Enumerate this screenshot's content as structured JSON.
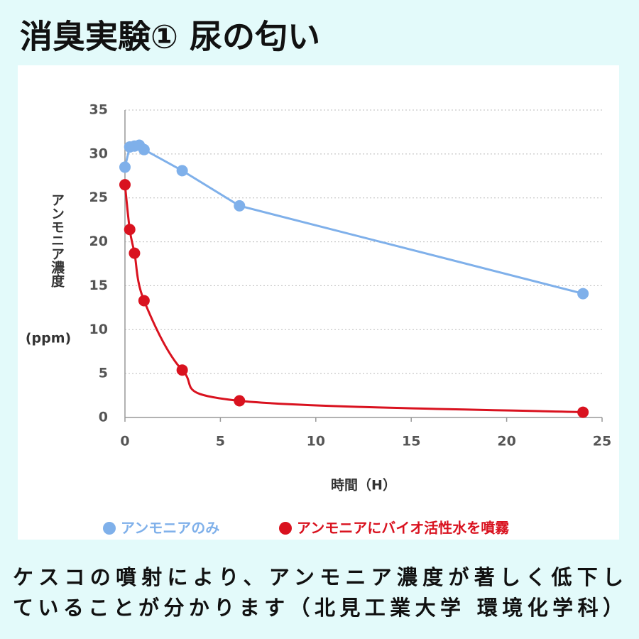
{
  "header": {
    "title": "消臭実験① 尿の匂い"
  },
  "chart_data": {
    "type": "line",
    "xlabel": "時間（H）",
    "ylabel": "アンモニア濃度",
    "ylabel_unit": "(ppm)",
    "xlim": [
      0,
      25
    ],
    "xticks": [
      0,
      5,
      10,
      15,
      20,
      25
    ],
    "ylim": [
      0,
      35
    ],
    "yticks": [
      0,
      5,
      10,
      15,
      20,
      25,
      30,
      35
    ],
    "grid": true,
    "legend": "bottom",
    "series": [
      {
        "name": "アンモニアのみ",
        "color": "#7fb0ea",
        "smooth": false,
        "x": [
          0,
          0.25,
          0.5,
          0.75,
          1,
          3,
          6,
          24
        ],
        "values": [
          28.5,
          30.8,
          30.9,
          31.0,
          30.5,
          28.1,
          24.1,
          14.1
        ]
      },
      {
        "name": "アンモニアにバイオ活性水を噴霧",
        "color": "#d9121f",
        "smooth": true,
        "x": [
          0,
          0.25,
          0.5,
          1,
          3,
          6,
          24
        ],
        "values": [
          26.5,
          21.4,
          18.7,
          13.3,
          5.4,
          1.9,
          0.6
        ]
      }
    ]
  },
  "caption": [
    "ケスコの噴射により、アンモニア濃度が著しく低下し",
    "ていることが分かります（北見工業大学 環境化学科）"
  ]
}
